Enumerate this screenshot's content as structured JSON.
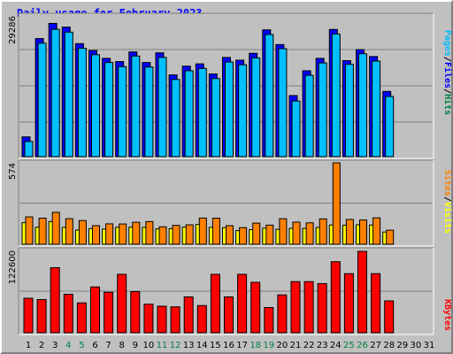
{
  "chart_data": [
    {
      "type": "bar",
      "title": "Daily usage for February 2023",
      "panel": "top",
      "categories": [
        "1",
        "2",
        "3",
        "4",
        "5",
        "6",
        "7",
        "8",
        "9",
        "10",
        "11",
        "12",
        "13",
        "14",
        "15",
        "16",
        "17",
        "18",
        "19",
        "20",
        "21",
        "22",
        "23",
        "24",
        "25",
        "26",
        "27",
        "28",
        "29",
        "30",
        "31"
      ],
      "weekend_days": [
        "4",
        "5",
        "11",
        "12",
        "18",
        "19",
        "25",
        "26"
      ],
      "ymax_label": "29286",
      "ymax": 29286,
      "series": [
        {
          "name": "Hits",
          "color": "#008040",
          "values": [
            null,
            null,
            null,
            null,
            null,
            null,
            null,
            null,
            null,
            null,
            null,
            null,
            null,
            null,
            null,
            null,
            null,
            null,
            null,
            null,
            null,
            null,
            null,
            null,
            null,
            null,
            null,
            null,
            null,
            null,
            null
          ]
        },
        {
          "name": "Files",
          "color": "#0000FF",
          "values": [
            4300,
            25700,
            29000,
            28200,
            24600,
            23100,
            21400,
            20700,
            22800,
            20500,
            22600,
            17800,
            19700,
            20200,
            18000,
            21600,
            21000,
            22500,
            27600,
            24400,
            13300,
            18700,
            21400,
            27700,
            20900,
            23300,
            21800,
            14200,
            null,
            null,
            null
          ]
        },
        {
          "name": "Pages",
          "color": "#00C0FF",
          "values": [
            3300,
            24700,
            27700,
            27100,
            23600,
            22200,
            20500,
            19600,
            21900,
            19500,
            21600,
            16800,
            18700,
            19200,
            17000,
            20600,
            20000,
            21500,
            26600,
            23500,
            12100,
            17700,
            20400,
            26700,
            20100,
            22400,
            20800,
            13100,
            null,
            null,
            null
          ]
        }
      ],
      "legend_label": [
        "Pages",
        "/",
        "Files",
        "/",
        "Hits"
      ]
    },
    {
      "type": "bar",
      "panel": "middle",
      "ymax_label": "574",
      "ymax": 574,
      "series": [
        {
          "name": "Visits",
          "color": "#FFFF00",
          "values": [
            152,
            120,
            160,
            119,
            100,
            110,
            107,
            120,
            121,
            119,
            108,
            110,
            121,
            140,
            119,
            117,
            96,
            103,
            113,
            105,
            112,
            112,
            118,
            136,
            134,
            137,
            136,
            86,
            null,
            null,
            null
          ]
        },
        {
          "name": "Sites",
          "color": "#FF8000",
          "values": [
            193,
            184,
            225,
            180,
            167,
            131,
            144,
            143,
            155,
            160,
            123,
            133,
            137,
            185,
            184,
            131,
            117,
            149,
            135,
            180,
            156,
            151,
            179,
            574,
            175,
            171,
            186,
            99,
            null,
            null,
            null
          ]
        }
      ],
      "legend_label": [
        "Sites",
        "/",
        "Visits"
      ]
    },
    {
      "type": "bar",
      "panel": "bottom",
      "ymax_label": "122600",
      "ymax": 122600,
      "series": [
        {
          "name": "KBytes",
          "color": "#FF0000",
          "values": [
            52000,
            50000,
            98000,
            58000,
            45000,
            69000,
            61000,
            88000,
            62000,
            43000,
            40000,
            39000,
            54000,
            41000,
            88000,
            54000,
            88000,
            76000,
            38000,
            57000,
            77000,
            77000,
            74000,
            107000,
            89000,
            122600,
            89000,
            48000,
            null,
            null,
            null
          ]
        }
      ],
      "legend_label": [
        "KBytes"
      ]
    }
  ]
}
